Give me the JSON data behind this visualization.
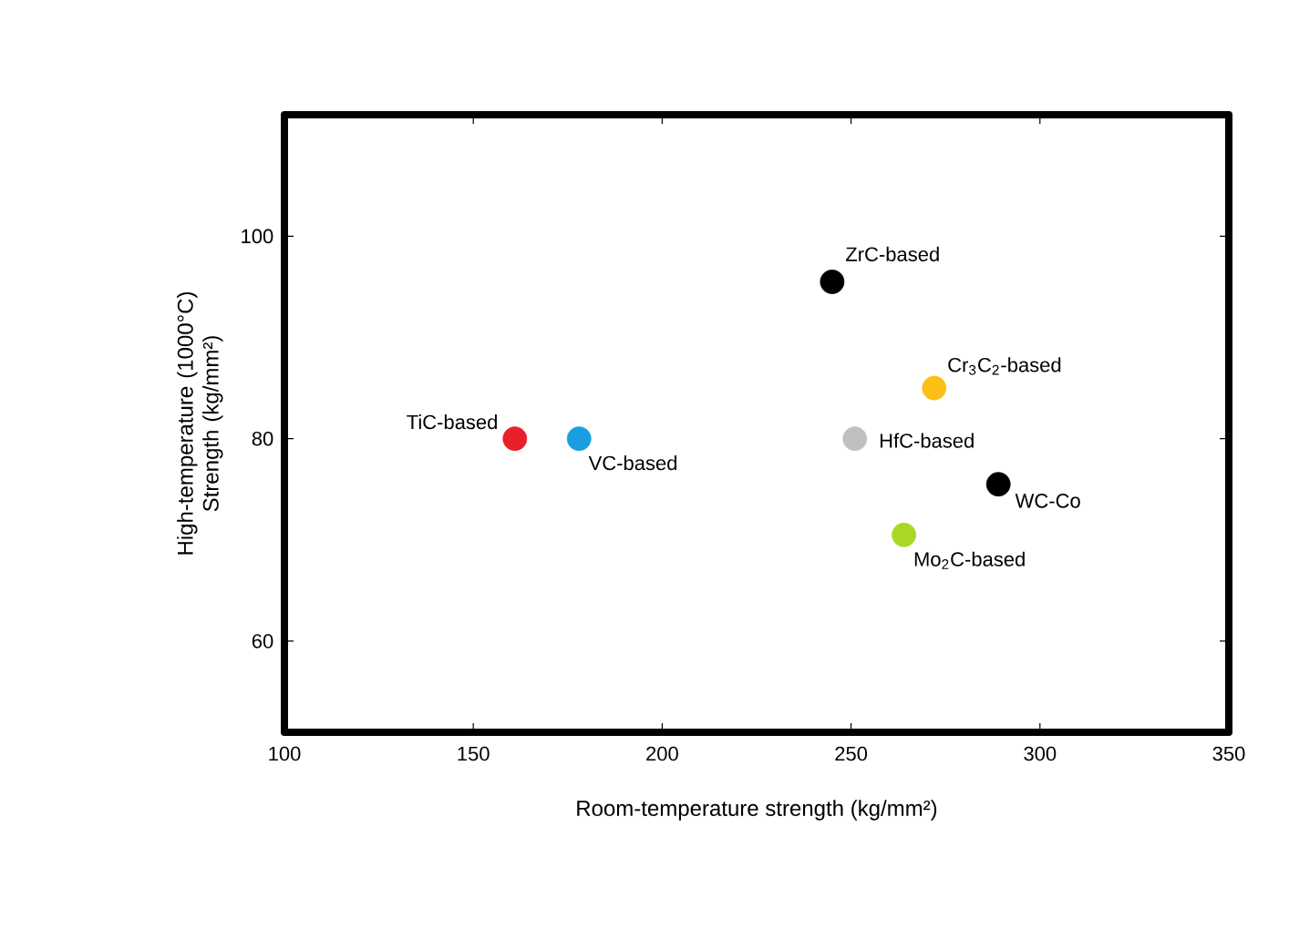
{
  "chart_data": {
    "type": "scatter",
    "xlabel": "Room-temperature strength (kg/mm²)",
    "ylabel": "High-temperature (1000°C) Strength (kg/mm²)",
    "xlim": [
      100,
      350
    ],
    "ylim": [
      51,
      112
    ],
    "xticks": [
      100,
      150,
      200,
      250,
      300,
      350
    ],
    "yticks": [
      60,
      80,
      100
    ],
    "marker": "circle",
    "series": [
      {
        "name": "TiC-based",
        "color": "#e8202a",
        "x": [
          161
        ],
        "values": [
          80
        ]
      },
      {
        "name": "VC-based",
        "color": "#1a9ee0",
        "x": [
          178
        ],
        "values": [
          80
        ]
      },
      {
        "name": "ZrC-based",
        "color": "#000000",
        "x": [
          245
        ],
        "values": [
          95.5
        ]
      },
      {
        "name": "Cr$_{3}$C$_{2}$-based",
        "color": "#fbbf16",
        "x": [
          272
        ],
        "values": [
          85
        ]
      },
      {
        "name": "HfC-based",
        "color": "#c0c0c0",
        "x": [
          251
        ],
        "values": [
          80
        ]
      },
      {
        "name": "WC-Co",
        "color": "#000000",
        "x": [
          289
        ],
        "values": [
          75.5
        ]
      },
      {
        "name": "Mo$_{2}$C-based",
        "color": "#a8d825",
        "x": [
          264
        ],
        "values": [
          70.5
        ]
      }
    ]
  }
}
